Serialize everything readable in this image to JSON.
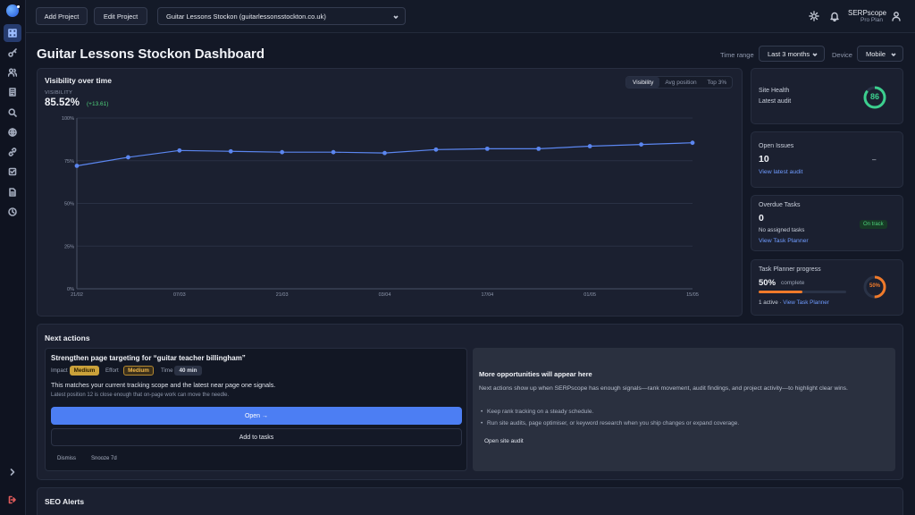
{
  "topbar": {
    "add_project": "Add Project",
    "edit_project": "Edit Project",
    "project_select": "Guitar Lessons Stockon (guitarlessonsstockton.co.uk)",
    "brand_name": "SERPscope",
    "brand_plan": "Pro Plan"
  },
  "page": {
    "title": "Guitar Lessons Stockon Dashboard",
    "time_range_label": "Time range",
    "time_range_value": "Last 3 months",
    "device_label": "Device",
    "device_value": "Mobile"
  },
  "visibility": {
    "title": "Visibility over time",
    "metric_label": "VISIBILITY",
    "value": "85.52%",
    "delta": "(+13.61)",
    "tabs": [
      "Visibility",
      "Avg position",
      "Top 3%"
    ],
    "line_color": "#5b86f0"
  },
  "chart_data": {
    "type": "line",
    "x": [
      "21/02",
      "28/02",
      "07/03",
      "14/03",
      "21/03",
      "28/03",
      "03/04",
      "10/04",
      "17/04",
      "24/04",
      "01/05",
      "08/05",
      "15/05"
    ],
    "x_ticks": [
      "21/02",
      "07/03",
      "21/03",
      "03/04",
      "17/04",
      "01/05",
      "15/05"
    ],
    "series": [
      {
        "values": [
          72,
          77,
          81,
          80.5,
          80,
          80,
          79.5,
          81.5,
          82,
          82,
          83.5,
          84.5,
          85.5
        ]
      }
    ],
    "yticks": [
      "100%",
      "75%",
      "50%",
      "25%",
      "0%"
    ],
    "ylim": [
      0,
      100
    ],
    "grid": true
  },
  "side_cards": {
    "site_health_title": "Site Health",
    "site_health_sub": "Latest audit",
    "site_health_score": "86",
    "open_issues_title": "Open Issues",
    "open_issues_value": "10",
    "open_issues_link": "View latest audit",
    "open_issues_dash": "–",
    "overdue_title": "Overdue Tasks",
    "overdue_value": "0",
    "overdue_sub": "No assigned tasks",
    "overdue_link": "View Task Planner",
    "overdue_badge": "On track",
    "planner_title": "Task Planner progress",
    "planner_value": "50%",
    "planner_value_suffix": "complete",
    "planner_ring": "50%",
    "planner_progress": 0.5,
    "planner_sub_prefix": "1 active · ",
    "planner_link": "View Task Planner"
  },
  "next_actions": {
    "title": "Next actions",
    "card_title": "Strengthen page targeting for “guitar teacher billingham”",
    "impact_label": "Impact",
    "impact_value": "Medium",
    "effort_label": "Effort",
    "effort_value": "Medium",
    "time_label": "Time",
    "time_value": "40 min",
    "desc": "This matches your current tracking scope and the latest near page one signals.",
    "note": "Latest position 12 is close enough that on-page work can move the needle.",
    "open_label": "Open →",
    "add_tasks_label": "Add to tasks",
    "dismiss": "Dismiss",
    "snooze": "Snooze 7d",
    "more_title": "More opportunities will appear here",
    "more_desc": "Next actions show up when SERPscope has enough signals—rank movement, audit findings, and project activity—to highlight clear wins.",
    "more_bullet_1": "Keep rank tracking on a steady schedule.",
    "more_bullet_2": "Run site audits, page optimiser, or keyword research when you ship changes or expand coverage.",
    "more_link": "Open site audit"
  },
  "seo_alerts": {
    "title": "SEO Alerts"
  }
}
